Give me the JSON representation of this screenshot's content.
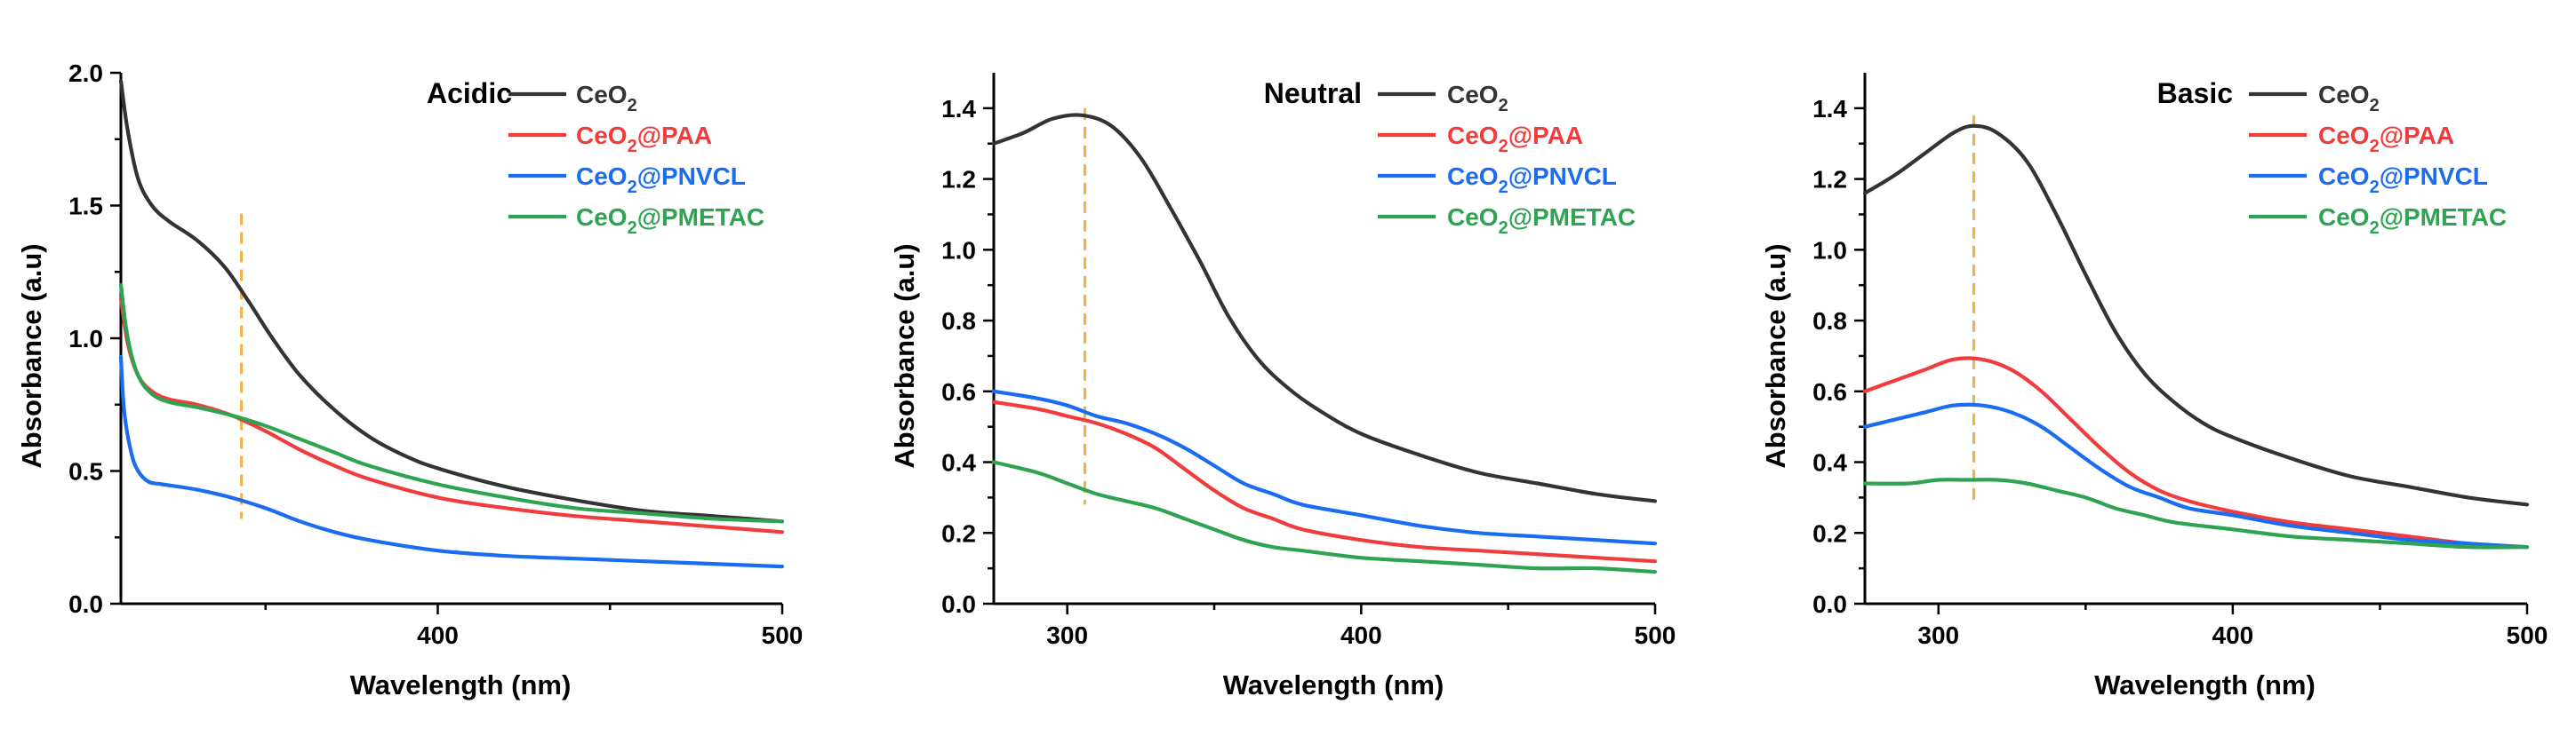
{
  "chart_data": [
    {
      "type": "line",
      "condition": "Acidic",
      "xlabel": "Wavelength (nm)",
      "ylabel": "Absorbance (a.u)",
      "xlim": [
        308,
        500
      ],
      "ylim": [
        0,
        2.0
      ],
      "xticks": [
        400,
        500
      ],
      "xtick_labels": [
        "400",
        "500"
      ],
      "yticks": [
        0.0,
        0.5,
        1.0,
        1.5,
        2.0
      ],
      "ytick_labels": [
        "0.0",
        "0.5",
        "1.0",
        "1.5",
        "2.0"
      ],
      "guide_x": 343,
      "guide_y": [
        0.32,
        1.47
      ],
      "series": [
        {
          "name": "CeO2",
          "label_main": "CeO",
          "label_sub": "2",
          "label_rest": "",
          "color": "#333333",
          "x": [
            308,
            310,
            313,
            317,
            322,
            330,
            338,
            345,
            352,
            360,
            370,
            380,
            390,
            400,
            420,
            440,
            460,
            480,
            500
          ],
          "y": [
            1.97,
            1.78,
            1.6,
            1.5,
            1.44,
            1.37,
            1.27,
            1.14,
            1.0,
            0.86,
            0.73,
            0.63,
            0.56,
            0.51,
            0.44,
            0.39,
            0.35,
            0.33,
            0.31
          ]
        },
        {
          "name": "CeO2@PAA",
          "label_main": "CeO",
          "label_sub": "2",
          "label_rest": "@PAA",
          "color": "#f03c3c",
          "x": [
            308,
            310,
            313,
            317,
            322,
            330,
            340,
            350,
            360,
            370,
            380,
            400,
            420,
            440,
            460,
            480,
            500
          ],
          "y": [
            1.15,
            0.98,
            0.86,
            0.8,
            0.77,
            0.75,
            0.71,
            0.65,
            0.58,
            0.52,
            0.47,
            0.4,
            0.36,
            0.33,
            0.31,
            0.29,
            0.27
          ]
        },
        {
          "name": "CeO2@PNVCL",
          "label_main": "CeO",
          "label_sub": "2",
          "label_rest": "@PNVCL",
          "color": "#1a6cf0",
          "x": [
            308,
            309,
            311,
            313,
            316,
            320,
            330,
            340,
            350,
            360,
            370,
            380,
            400,
            420,
            440,
            460,
            480,
            500
          ],
          "y": [
            0.93,
            0.72,
            0.57,
            0.5,
            0.46,
            0.45,
            0.43,
            0.4,
            0.36,
            0.31,
            0.27,
            0.24,
            0.2,
            0.18,
            0.17,
            0.16,
            0.15,
            0.14
          ]
        },
        {
          "name": "CeO2@PMETAC",
          "label_main": "CeO",
          "label_sub": "2",
          "label_rest": "@PMETAC",
          "color": "#2ea352",
          "x": [
            308,
            310,
            313,
            317,
            322,
            330,
            340,
            350,
            360,
            370,
            380,
            400,
            420,
            440,
            460,
            480,
            500
          ],
          "y": [
            1.2,
            1.0,
            0.86,
            0.79,
            0.76,
            0.74,
            0.71,
            0.67,
            0.62,
            0.57,
            0.52,
            0.45,
            0.4,
            0.36,
            0.34,
            0.32,
            0.31
          ]
        }
      ]
    },
    {
      "type": "line",
      "condition": "Neutral",
      "xlabel": "Wavelength (nm)",
      "ylabel": "Absorbance (a.u)",
      "xlim": [
        275,
        500
      ],
      "ylim": [
        0,
        1.5
      ],
      "xticks": [
        300,
        400,
        500
      ],
      "xtick_labels": [
        "300",
        "400",
        "500"
      ],
      "yticks": [
        0.0,
        0.2,
        0.4,
        0.6,
        0.8,
        1.0,
        1.2,
        1.4
      ],
      "ytick_labels": [
        "0.0",
        "0.2",
        "0.4",
        "0.6",
        "0.8",
        "1.0",
        "1.2",
        "1.4"
      ],
      "guide_x": 306,
      "guide_y": [
        0.28,
        1.4
      ],
      "series": [
        {
          "name": "CeO2",
          "label_main": "CeO",
          "label_sub": "2",
          "label_rest": "",
          "color": "#333333",
          "x": [
            275,
            285,
            295,
            305,
            315,
            325,
            335,
            345,
            355,
            365,
            375,
            385,
            400,
            420,
            440,
            460,
            480,
            500
          ],
          "y": [
            1.3,
            1.33,
            1.37,
            1.38,
            1.35,
            1.26,
            1.12,
            0.97,
            0.81,
            0.69,
            0.61,
            0.55,
            0.48,
            0.42,
            0.37,
            0.34,
            0.31,
            0.29
          ]
        },
        {
          "name": "CeO2@PAA",
          "label_main": "CeO",
          "label_sub": "2",
          "label_rest": "@PAA",
          "color": "#f03c3c",
          "x": [
            275,
            290,
            300,
            310,
            320,
            330,
            340,
            350,
            360,
            370,
            380,
            400,
            420,
            440,
            460,
            480,
            500
          ],
          "y": [
            0.57,
            0.55,
            0.53,
            0.51,
            0.48,
            0.44,
            0.38,
            0.32,
            0.27,
            0.24,
            0.21,
            0.18,
            0.16,
            0.15,
            0.14,
            0.13,
            0.12
          ]
        },
        {
          "name": "CeO2@PNVCL",
          "label_main": "CeO",
          "label_sub": "2",
          "label_rest": "@PNVCL",
          "color": "#1a6cf0",
          "x": [
            275,
            290,
            300,
            310,
            320,
            330,
            340,
            350,
            360,
            370,
            380,
            400,
            420,
            440,
            460,
            480,
            500
          ],
          "y": [
            0.6,
            0.58,
            0.56,
            0.53,
            0.51,
            0.48,
            0.44,
            0.39,
            0.34,
            0.31,
            0.28,
            0.25,
            0.22,
            0.2,
            0.19,
            0.18,
            0.17
          ]
        },
        {
          "name": "CeO2@PMETAC",
          "label_main": "CeO",
          "label_sub": "2",
          "label_rest": "@PMETAC",
          "color": "#2ea352",
          "x": [
            275,
            290,
            300,
            310,
            320,
            330,
            340,
            350,
            360,
            370,
            380,
            400,
            420,
            440,
            460,
            480,
            500
          ],
          "y": [
            0.4,
            0.37,
            0.34,
            0.31,
            0.29,
            0.27,
            0.24,
            0.21,
            0.18,
            0.16,
            0.15,
            0.13,
            0.12,
            0.11,
            0.1,
            0.1,
            0.09
          ]
        }
      ]
    },
    {
      "type": "line",
      "condition": "Basic",
      "xlabel": "Wavelength (nm)",
      "ylabel": "Absorbance (a.u)",
      "xlim": [
        275,
        500
      ],
      "ylim": [
        0,
        1.5
      ],
      "xticks": [
        300,
        400,
        500
      ],
      "xtick_labels": [
        "300",
        "400",
        "500"
      ],
      "yticks": [
        0.0,
        0.2,
        0.4,
        0.6,
        0.8,
        1.0,
        1.2,
        1.4
      ],
      "ytick_labels": [
        "0.0",
        "0.2",
        "0.4",
        "0.6",
        "0.8",
        "1.0",
        "1.2",
        "1.4"
      ],
      "guide_x": 312,
      "guide_y": [
        0.28,
        1.38
      ],
      "series": [
        {
          "name": "CeO2",
          "label_main": "CeO",
          "label_sub": "2",
          "label_rest": "",
          "color": "#333333",
          "x": [
            275,
            285,
            295,
            305,
            312,
            320,
            330,
            340,
            350,
            360,
            370,
            380,
            390,
            400,
            420,
            440,
            460,
            480,
            500
          ],
          "y": [
            1.16,
            1.21,
            1.27,
            1.33,
            1.35,
            1.33,
            1.25,
            1.1,
            0.93,
            0.77,
            0.65,
            0.57,
            0.51,
            0.47,
            0.41,
            0.36,
            0.33,
            0.3,
            0.28
          ]
        },
        {
          "name": "CeO2@PAA",
          "label_main": "CeO",
          "label_sub": "2",
          "label_rest": "@PAA",
          "color": "#f03c3c",
          "x": [
            275,
            285,
            295,
            305,
            315,
            325,
            335,
            345,
            355,
            365,
            375,
            385,
            400,
            420,
            440,
            460,
            480,
            500
          ],
          "y": [
            0.6,
            0.63,
            0.66,
            0.69,
            0.69,
            0.66,
            0.6,
            0.52,
            0.44,
            0.37,
            0.32,
            0.29,
            0.26,
            0.23,
            0.21,
            0.19,
            0.17,
            0.16
          ]
        },
        {
          "name": "CeO2@PNVCL",
          "label_main": "CeO",
          "label_sub": "2",
          "label_rest": "@PNVCL",
          "color": "#1a6cf0",
          "x": [
            275,
            285,
            295,
            305,
            315,
            325,
            335,
            345,
            355,
            365,
            375,
            385,
            400,
            420,
            440,
            460,
            480,
            500
          ],
          "y": [
            0.5,
            0.52,
            0.54,
            0.56,
            0.56,
            0.54,
            0.5,
            0.44,
            0.38,
            0.33,
            0.3,
            0.27,
            0.25,
            0.22,
            0.2,
            0.18,
            0.17,
            0.16
          ]
        },
        {
          "name": "CeO2@PMETAC",
          "label_main": "CeO",
          "label_sub": "2",
          "label_rest": "@PMETAC",
          "color": "#2ea352",
          "x": [
            275,
            290,
            300,
            310,
            320,
            330,
            340,
            350,
            360,
            370,
            380,
            400,
            420,
            440,
            460,
            480,
            500
          ],
          "y": [
            0.34,
            0.34,
            0.35,
            0.35,
            0.35,
            0.34,
            0.32,
            0.3,
            0.27,
            0.25,
            0.23,
            0.21,
            0.19,
            0.18,
            0.17,
            0.16,
            0.16
          ]
        }
      ]
    }
  ]
}
